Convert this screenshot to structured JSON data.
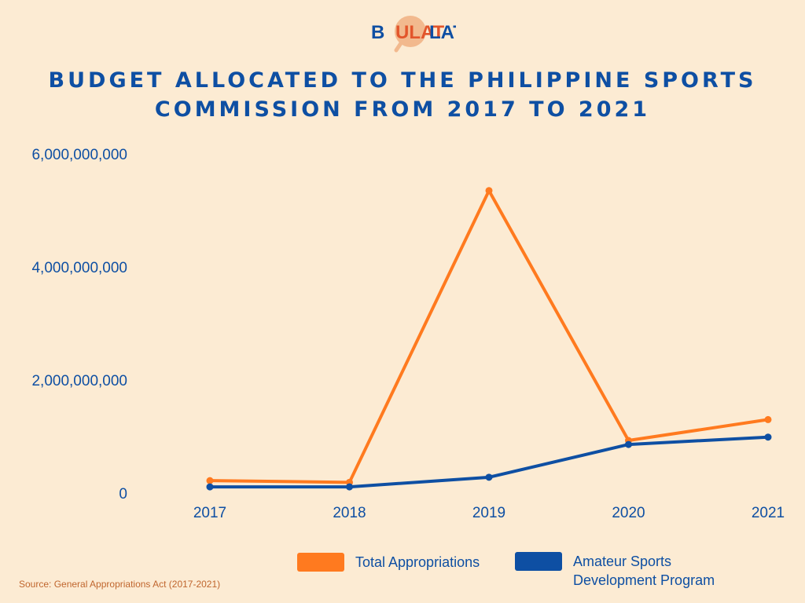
{
  "logo": {
    "text_b": "B",
    "text_ulat": "ULAT",
    "text_lat": "LAT",
    "colors": {
      "blue": "#0E4FA3",
      "orange": "#E2552B",
      "circle": "#F2B98E"
    }
  },
  "title": {
    "line1": "BUDGET ALLOCATED TO THE PHILIPPINE SPORTS",
    "line2": "COMMISSION FROM 2017 TO 2021"
  },
  "chart_data": {
    "type": "line",
    "categories": [
      "2017",
      "2018",
      "2019",
      "2020",
      "2021"
    ],
    "series": [
      {
        "name": "Total Appropriations",
        "color": "#FF7A1F",
        "values": [
          220000000,
          190000000,
          5350000000,
          930000000,
          1300000000
        ]
      },
      {
        "name": "Amateur Sports Development Program",
        "color": "#0E4FA3",
        "values": [
          110000000,
          110000000,
          280000000,
          860000000,
          990000000
        ]
      }
    ],
    "ylim": [
      0,
      6000000000
    ],
    "yticks": [
      0,
      2000000000,
      4000000000,
      6000000000
    ],
    "ytick_labels": [
      "0",
      "2,000,000,000",
      "4,000,000,000",
      "6,000,000,000"
    ],
    "grid": false,
    "legend": "bottom"
  },
  "legend": {
    "item1": "Total Appropriations",
    "item2": "Amateur Sports Development Program"
  },
  "source": "Source: General Appropriations Act (2017-2021)"
}
